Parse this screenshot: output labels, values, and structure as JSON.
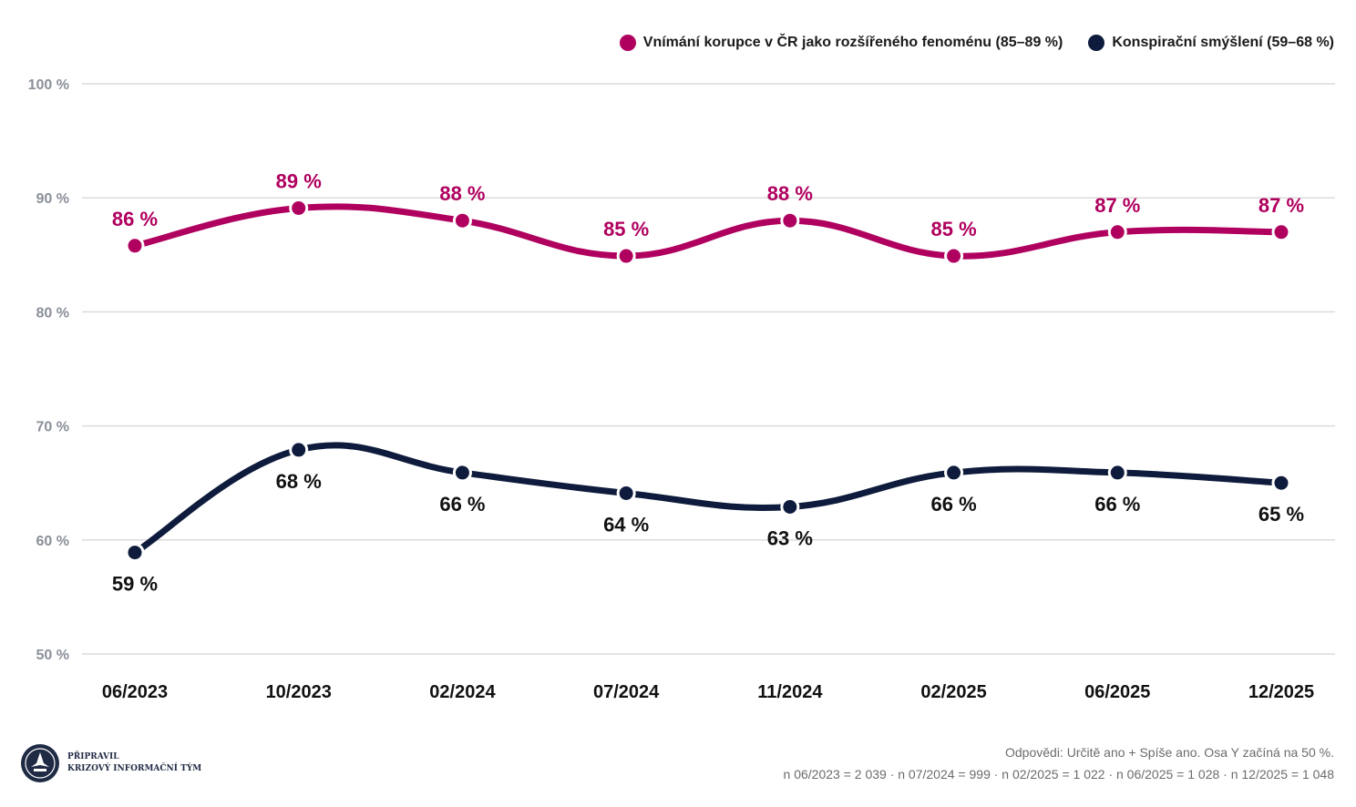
{
  "chart_data": {
    "type": "line",
    "categories": [
      "06/2023",
      "10/2023",
      "02/2024",
      "07/2024",
      "11/2024",
      "02/2025",
      "06/2025",
      "12/2025"
    ],
    "ylim": [
      50,
      100
    ],
    "yticks": [
      50,
      60,
      70,
      80,
      90,
      100
    ],
    "ytick_labels": [
      "50 %",
      "60 %",
      "70 %",
      "80 %",
      "90 %",
      "100 %"
    ],
    "grid": true,
    "legend_position": "top-right",
    "series": [
      {
        "name": "Vnímání korupce v ČR jako rozšířeného fenoménu (85–89 %)",
        "color": "#b0005f",
        "values": [
          85.8,
          89.1,
          88.0,
          84.9,
          88.0,
          84.9,
          87.0,
          87.0
        ],
        "labels": [
          "86 %",
          "89 %",
          "88 %",
          "85 %",
          "88 %",
          "85 %",
          "87 %",
          "87 %"
        ],
        "label_position": "above"
      },
      {
        "name": "Konspirační smýšlení (59–68 %)",
        "color": "#0f1b3c",
        "values": [
          58.9,
          67.9,
          65.9,
          64.1,
          62.9,
          65.9,
          65.9,
          65.0
        ],
        "labels": [
          "59 %",
          "68 %",
          "66 %",
          "64 %",
          "63 %",
          "66 %",
          "66 %",
          "65 %"
        ],
        "label_position": "below"
      }
    ]
  },
  "footer": {
    "note_line1": "Odpovědi: Určitě ano + Spíše ano. Osa Y začíná na 50 %.",
    "note_line2": "n 06/2023 = 2 039 · n 07/2024 = 999 · n 02/2025 = 1 022 · n 06/2025 = 1 028 · n 12/2025 = 1 048"
  },
  "brand": {
    "line1": "PŘIPRAVIL",
    "line2": "KRIZOVÝ INFORMAČNÍ TÝM",
    "logo_icon": "seal-logo-icon"
  }
}
